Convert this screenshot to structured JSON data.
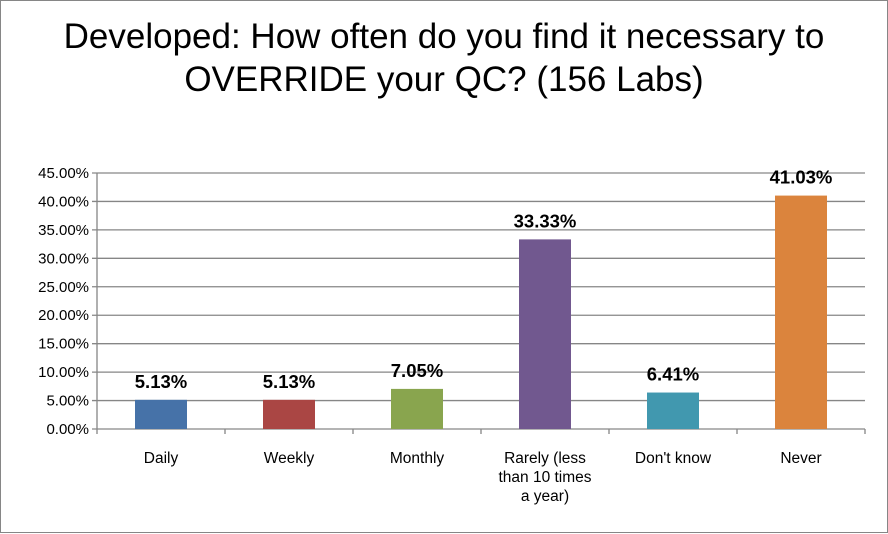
{
  "chart_data": {
    "type": "bar",
    "title": "Developed: How often do you find it necessary to OVERRIDE your QC? (156 Labs)",
    "categories": [
      "Daily",
      "Weekly",
      "Monthly",
      "Rarely (less than 10 times a year)",
      "Don't know",
      "Never"
    ],
    "category_lines": [
      [
        "Daily"
      ],
      [
        "Weekly"
      ],
      [
        "Monthly"
      ],
      [
        "Rarely (less",
        "than 10 times",
        "a year)"
      ],
      [
        "Don't know"
      ],
      [
        "Never"
      ]
    ],
    "values": [
      5.13,
      5.13,
      7.05,
      33.33,
      6.41,
      41.03
    ],
    "data_labels": [
      "5.13%",
      "5.13%",
      "7.05%",
      "33.33%",
      "6.41%",
      "41.03%"
    ],
    "colors": [
      "#4672A8",
      "#AA4644",
      "#89A54E",
      "#71588F",
      "#4198AF",
      "#DB843D"
    ],
    "yticks": [
      "0.00%",
      "5.00%",
      "10.00%",
      "15.00%",
      "20.00%",
      "25.00%",
      "30.00%",
      "35.00%",
      "40.00%",
      "45.00%"
    ],
    "ylim": [
      0,
      45
    ],
    "xlabel": "",
    "ylabel": "",
    "grid": true,
    "legend": "none"
  }
}
